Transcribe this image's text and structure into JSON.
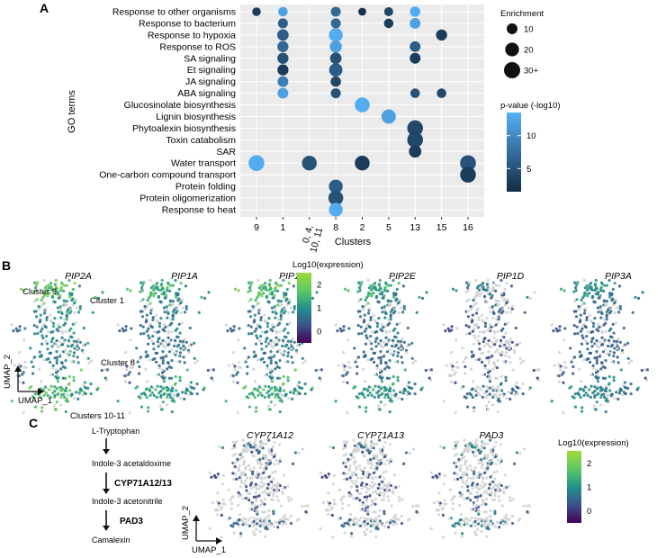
{
  "panels": {
    "a_label": "A",
    "b_label": "B",
    "c_label": "C"
  },
  "colors": {
    "grid_bg": "#ebebeb",
    "low": "#132b43",
    "high": "#56b1f7",
    "umap_grey": "#d3d3d3"
  },
  "chart_data": [
    {
      "type": "scatter",
      "subtype": "dot-plot",
      "title": "",
      "xlabel": "Clusters",
      "ylabel": "GO terms",
      "x_categories": [
        "9",
        "1",
        "0, 4, 10, 11",
        "8",
        "2",
        "5",
        "13",
        "15",
        "16"
      ],
      "y_categories": [
        "Response to other organisms",
        "Response to bacterium",
        "Response to hypoxia",
        "Response to ROS",
        "SA signaling",
        "Et signaling",
        "JA signaling",
        "ABA signaling",
        "Glucosinolate biosynthesis",
        "Lignin biosynthesis",
        "Phytoalexin biosynthesis",
        "Toxin catabolism",
        "SAR",
        "Water transport",
        "One-carbon compound transport",
        "Protein folding",
        "Protein oligomerization",
        "Response to heat"
      ],
      "points": [
        {
          "go": "Response to other organisms",
          "cluster": "9",
          "enrichment": 5,
          "pval": 3
        },
        {
          "go": "Response to other organisms",
          "cluster": "1",
          "enrichment": 7,
          "pval": 12
        },
        {
          "go": "Response to other organisms",
          "cluster": "8",
          "enrichment": 8,
          "pval": 7
        },
        {
          "go": "Response to other organisms",
          "cluster": "2",
          "enrichment": 4,
          "pval": 2
        },
        {
          "go": "Response to other organisms",
          "cluster": "5",
          "enrichment": 6,
          "pval": 4
        },
        {
          "go": "Response to other organisms",
          "cluster": "13",
          "enrichment": 9,
          "pval": 13
        },
        {
          "go": "Response to bacterium",
          "cluster": "1",
          "enrichment": 8,
          "pval": 6
        },
        {
          "go": "Response to bacterium",
          "cluster": "8",
          "enrichment": 8,
          "pval": 7
        },
        {
          "go": "Response to bacterium",
          "cluster": "5",
          "enrichment": 7,
          "pval": 3
        },
        {
          "go": "Response to bacterium",
          "cluster": "13",
          "enrichment": 10,
          "pval": 12
        },
        {
          "go": "Response to hypoxia",
          "cluster": "1",
          "enrichment": 12,
          "pval": 6
        },
        {
          "go": "Response to hypoxia",
          "cluster": "8",
          "enrichment": 20,
          "pval": 13
        },
        {
          "go": "Response to hypoxia",
          "cluster": "15",
          "enrichment": 11,
          "pval": 3
        },
        {
          "go": "Response to ROS",
          "cluster": "1",
          "enrichment": 11,
          "pval": 7
        },
        {
          "go": "Response to ROS",
          "cluster": "8",
          "enrichment": 14,
          "pval": 12
        },
        {
          "go": "Response to ROS",
          "cluster": "13",
          "enrichment": 10,
          "pval": 6
        },
        {
          "go": "SA signaling",
          "cluster": "1",
          "enrichment": 11,
          "pval": 5
        },
        {
          "go": "SA signaling",
          "cluster": "8",
          "enrichment": 12,
          "pval": 5
        },
        {
          "go": "SA signaling",
          "cluster": "13",
          "enrichment": 10,
          "pval": 3
        },
        {
          "go": "Et signaling",
          "cluster": "1",
          "enrichment": 11,
          "pval": 3
        },
        {
          "go": "Et signaling",
          "cluster": "8",
          "enrichment": 18,
          "pval": 6
        },
        {
          "go": "JA signaling",
          "cluster": "1",
          "enrichment": 10,
          "pval": 9
        },
        {
          "go": "JA signaling",
          "cluster": "8",
          "enrichment": 9,
          "pval": 4
        },
        {
          "go": "ABA signaling",
          "cluster": "1",
          "enrichment": 10,
          "pval": 12
        },
        {
          "go": "ABA signaling",
          "cluster": "8",
          "enrichment": 8,
          "pval": 5
        },
        {
          "go": "ABA signaling",
          "cluster": "13",
          "enrichment": 7,
          "pval": 5
        },
        {
          "go": "ABA signaling",
          "cluster": "15",
          "enrichment": 7,
          "pval": 4
        },
        {
          "go": "Glucosinolate biosynthesis",
          "cluster": "2",
          "enrichment": 24,
          "pval": 13
        },
        {
          "go": "Lignin biosynthesis",
          "cluster": "5",
          "enrichment": 22,
          "pval": 12
        },
        {
          "go": "Phytoalexin biosynthesis",
          "cluster": "13",
          "enrichment": 28,
          "pval": 4
        },
        {
          "go": "Toxin catabolism",
          "cluster": "13",
          "enrichment": 28,
          "pval": 4
        },
        {
          "go": "SAR",
          "cluster": "13",
          "enrichment": 15,
          "pval": 3
        },
        {
          "go": "Water transport",
          "cluster": "9",
          "enrichment": 28,
          "pval": 13
        },
        {
          "go": "Water transport",
          "cluster": "0, 4, 10, 11",
          "enrichment": 24,
          "pval": 5
        },
        {
          "go": "Water transport",
          "cluster": "2",
          "enrichment": 24,
          "pval": 3
        },
        {
          "go": "Water transport",
          "cluster": "16",
          "enrichment": 28,
          "pval": 5
        },
        {
          "go": "One-carbon compound transport",
          "cluster": "16",
          "enrichment": 28,
          "pval": 3
        },
        {
          "go": "Protein folding",
          "cluster": "8",
          "enrichment": 20,
          "pval": 6
        },
        {
          "go": "Protein oligomerization",
          "cluster": "8",
          "enrichment": 24,
          "pval": 5
        },
        {
          "go": "Response to heat",
          "cluster": "8",
          "enrichment": 20,
          "pval": 13
        }
      ],
      "size_legend": {
        "title": "Enrichment",
        "labels": [
          "10",
          "20",
          "30+"
        ],
        "values": [
          10,
          20,
          30
        ]
      },
      "color_legend": {
        "title": "p-value (-log10)",
        "ticks": [
          "10",
          "5"
        ],
        "tick_values": [
          10,
          5
        ],
        "range": [
          1.5,
          13.5
        ]
      },
      "grid": true
    },
    {
      "type": "scatter",
      "subtype": "umap-feature-plots",
      "panel": "B",
      "genes": [
        "PIP2A",
        "PIP1A",
        "PIP1B",
        "PIP2E",
        "PIP1D",
        "PIP3A"
      ],
      "gene_levels": [
        0.85,
        0.65,
        0.75,
        0.6,
        0.35,
        0.5
      ],
      "annotations": [
        "Cluster 9",
        "Cluster 1",
        "Cluster 8",
        "Clusters 10-11"
      ],
      "axis_x": "UMAP_1",
      "axis_y": "UMAP_2",
      "legend_title": "Log10(expression)",
      "legend_ticks": [
        "2",
        "1",
        "0"
      ],
      "legend_range": [
        -0.5,
        2.5
      ]
    },
    {
      "type": "scatter",
      "subtype": "umap-feature-plots",
      "panel": "C",
      "genes": [
        "CYP71A12",
        "CYP71A13",
        "PAD3"
      ],
      "gene_levels": [
        0.3,
        0.3,
        0.45
      ],
      "axis_x": "UMAP_1",
      "axis_y": "UMAP_2",
      "legend_title": "Log10(expression)",
      "legend_ticks": [
        "2",
        "1",
        "0"
      ],
      "legend_range": [
        -0.5,
        2.5
      ]
    }
  ],
  "pathway": {
    "nodes": [
      "L-Tryptophan",
      "Indole-3 acetaldoxime",
      "Indole-3 acetonitrile",
      "Camalexin"
    ],
    "enzymes": [
      "CYP71A12/13",
      "PAD3"
    ]
  }
}
